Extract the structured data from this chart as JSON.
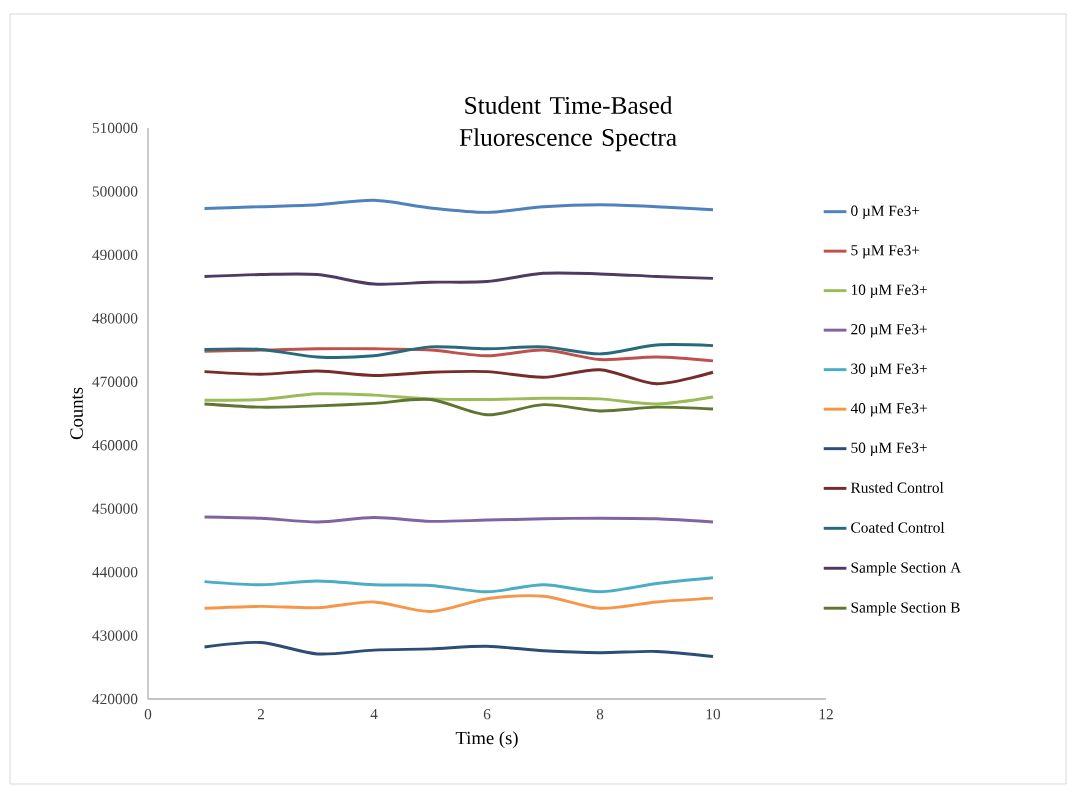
{
  "chart_data": {
    "type": "line",
    "title": "Student Time-Based Fluorescence Spectra",
    "xlabel": "Time (s)",
    "ylabel": "Counts",
    "x": [
      1,
      2,
      3,
      4,
      5,
      6,
      7,
      8,
      9,
      10
    ],
    "xlim": [
      0,
      12
    ],
    "xticks": [
      0,
      2,
      4,
      6,
      8,
      10,
      12
    ],
    "ylim": [
      420000,
      510000
    ],
    "yticks": [
      420000,
      430000,
      440000,
      450000,
      460000,
      470000,
      480000,
      490000,
      500000,
      510000
    ],
    "grid": false,
    "legend": "right",
    "marker": "none",
    "line_style": "solid",
    "series": [
      {
        "name": "0 µM Fe3+",
        "color": "#4f81bd",
        "values": [
          497300,
          497600,
          497900,
          498600,
          497400,
          496700,
          497600,
          497900,
          497600,
          497100
        ]
      },
      {
        "name": "5 µM Fe3+",
        "color": "#c0504d",
        "values": [
          474800,
          475000,
          475200,
          475200,
          475000,
          474100,
          475000,
          473500,
          473900,
          473300
        ]
      },
      {
        "name": "10 µM Fe3+",
        "color": "#9bbb59",
        "values": [
          467100,
          467200,
          468100,
          467900,
          467300,
          467200,
          467400,
          467300,
          466500,
          467600
        ]
      },
      {
        "name": "20 µM Fe3+",
        "color": "#8064a2",
        "values": [
          448700,
          448500,
          447900,
          448600,
          448000,
          448200,
          448400,
          448500,
          448400,
          447900
        ]
      },
      {
        "name": "30 µM Fe3+",
        "color": "#4bacc6",
        "values": [
          438500,
          438000,
          438600,
          438000,
          437900,
          436900,
          438000,
          436900,
          438200,
          439100
        ]
      },
      {
        "name": "40 µM Fe3+",
        "color": "#f79646",
        "values": [
          434300,
          434600,
          434400,
          435300,
          433800,
          435800,
          436200,
          434300,
          435300,
          435900
        ]
      },
      {
        "name": "50 µM Fe3+",
        "color": "#2c4d75",
        "values": [
          428200,
          428900,
          427100,
          427700,
          427900,
          428300,
          427600,
          427300,
          427500,
          426700
        ]
      },
      {
        "name": "Rusted Control",
        "color": "#772c2a",
        "values": [
          471600,
          471200,
          471700,
          471000,
          471500,
          471600,
          470700,
          471900,
          469700,
          471500
        ]
      },
      {
        "name": "Coated Control",
        "color": "#276a7c",
        "values": [
          475100,
          475100,
          473900,
          474100,
          475500,
          475200,
          475500,
          474400,
          475800,
          475700
        ]
      },
      {
        "name": "Sample Section A",
        "color": "#4d3b62",
        "values": [
          486600,
          486900,
          486900,
          485400,
          485700,
          485800,
          487100,
          487000,
          486600,
          486300
        ]
      },
      {
        "name": "Sample Section B",
        "color": "#5f7530",
        "values": [
          466500,
          466000,
          466200,
          466600,
          467200,
          464800,
          466400,
          465400,
          466000,
          465700
        ]
      }
    ]
  }
}
